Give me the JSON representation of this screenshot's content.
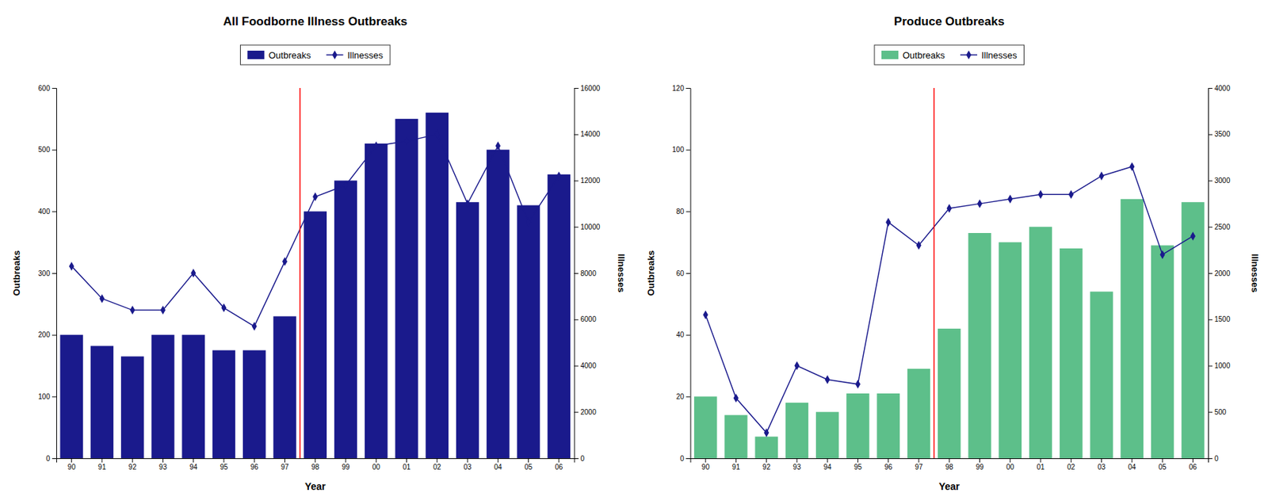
{
  "chart_data": [
    {
      "type": "bar",
      "title": "All Foodborne Illness Outbreaks",
      "x_label": "Year",
      "y_label": "Outbreaks",
      "y2_label": "Illnesses",
      "categories": [
        "90",
        "91",
        "92",
        "93",
        "94",
        "95",
        "96",
        "97",
        "98",
        "99",
        "00",
        "01",
        "02",
        "03",
        "04",
        "05",
        "06"
      ],
      "series": [
        {
          "name": "Outbreaks",
          "type": "bar",
          "color": "#1a1a8c",
          "values": [
            200,
            182,
            165,
            200,
            200,
            175,
            175,
            230,
            400,
            450,
            510,
            550,
            560,
            415,
            500,
            410,
            460
          ]
        },
        {
          "name": "Illnesses",
          "type": "line",
          "axis": "y2",
          "color": "#1a1a8c",
          "marker": "diamond",
          "values": [
            8300,
            6900,
            6400,
            6400,
            8000,
            6500,
            5700,
            8500,
            11300,
            11800,
            13500,
            13700,
            14000,
            11000,
            13500,
            10200,
            12200
          ]
        }
      ],
      "ylim": [
        0,
        600
      ],
      "yticks": [
        0,
        100,
        200,
        300,
        400,
        500,
        600
      ],
      "y2lim": [
        0,
        16000
      ],
      "y2ticks": [
        0,
        2000,
        4000,
        6000,
        8000,
        10000,
        12000,
        14000,
        16000
      ],
      "annotations": [
        {
          "type": "vline",
          "x": 7.5,
          "color": "red"
        }
      ],
      "grid": false,
      "legend": "top"
    },
    {
      "type": "bar",
      "title": "Produce Outbreaks",
      "x_label": "Year",
      "y_label": "Outbreaks",
      "y2_label": "Illnesses",
      "categories": [
        "90",
        "91",
        "92",
        "93",
        "94",
        "95",
        "96",
        "97",
        "98",
        "99",
        "00",
        "01",
        "02",
        "03",
        "04",
        "05",
        "06"
      ],
      "series": [
        {
          "name": "Outbreaks",
          "type": "bar",
          "color": "#5dbf8a",
          "values": [
            20,
            14,
            7,
            18,
            15,
            21,
            21,
            29,
            42,
            73,
            70,
            75,
            68,
            54,
            84,
            69,
            83
          ]
        },
        {
          "name": "Illnesses",
          "type": "line",
          "axis": "y2",
          "color": "#1a1a8c",
          "marker": "diamond",
          "values": [
            1550,
            650,
            275,
            1000,
            850,
            800,
            2550,
            2300,
            2700,
            2750,
            2800,
            2850,
            2850,
            3050,
            3150,
            2200,
            2400
          ]
        }
      ],
      "ylim": [
        0,
        120
      ],
      "yticks": [
        0,
        20,
        40,
        60,
        80,
        100,
        120
      ],
      "y2lim": [
        0,
        4000
      ],
      "y2ticks": [
        0,
        500,
        1000,
        1500,
        2000,
        2500,
        3000,
        3500,
        4000
      ],
      "annotations": [
        {
          "type": "vline",
          "x": 7.5,
          "color": "red"
        }
      ],
      "grid": false,
      "legend": "top"
    }
  ]
}
